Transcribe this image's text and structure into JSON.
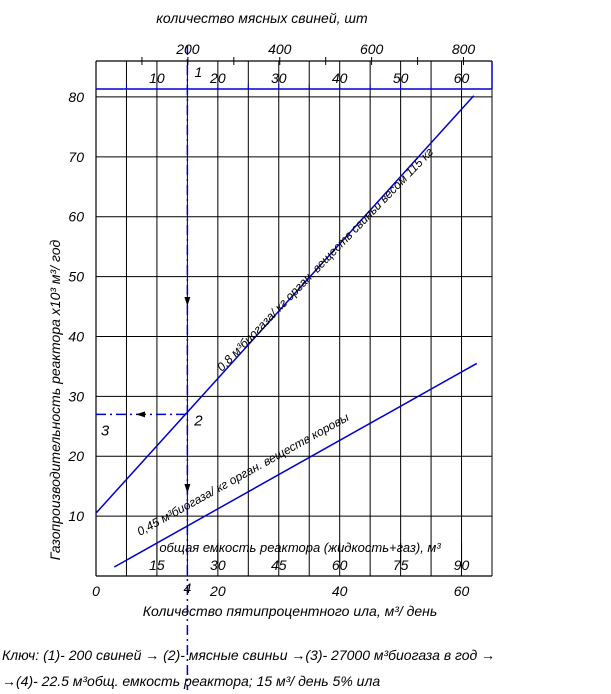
{
  "chart_data": {
    "type": "line",
    "top_axis": {
      "label": "количество мясных свиней, шт",
      "ticks": [
        200,
        400,
        600,
        800
      ],
      "range": [
        0,
        862
      ]
    },
    "inner_axis": {
      "ticks": [
        10,
        20,
        30,
        40,
        50,
        60
      ],
      "range": [
        0,
        65
      ]
    },
    "bottom_axis": {
      "label": "Количество пятипроцентного ила, м³/ день",
      "ticks": [
        0,
        20,
        40,
        60
      ],
      "range": [
        0,
        65
      ]
    },
    "capacity_axis": {
      "label": "общая емкость реактора (жидкость+газ), м³",
      "ticks": [
        15,
        30,
        45,
        60,
        75,
        90
      ],
      "range": [
        0,
        97.5
      ]
    },
    "yaxis": {
      "label": "Газопроизводительность реактора x10³ м³/ год",
      "ticks": [
        10,
        20,
        30,
        40,
        50,
        60,
        70,
        80
      ],
      "range": [
        0,
        86
      ]
    },
    "series": [
      {
        "name": "0,8 м³биогаза/ кг орган. веществ свиньи весом 115 кг",
        "x": [
          0,
          62
        ],
        "y": [
          10.5,
          80.2
        ],
        "color": "#0000cc"
      },
      {
        "name": "0,45 м³биогаза/ кг орган. веществ коровы",
        "x": [
          3,
          62.5
        ],
        "y": [
          1.5,
          35.5
        ],
        "color": "#0000cc"
      }
    ],
    "example": {
      "x": 15,
      "y": 27,
      "point_labels": {
        "p1": "1",
        "p2": "2",
        "p3": "3",
        "p4": "4"
      }
    },
    "grid": true
  },
  "caption": {
    "line1": "Ключ: (1)- 200 свиней → (2)- мясные свиньи →(3)- 27000 м³биогаза в год →",
    "line2": "→(4)- 22.5 м³общ. емкость реактора; 15 м³/ день 5% ила"
  }
}
